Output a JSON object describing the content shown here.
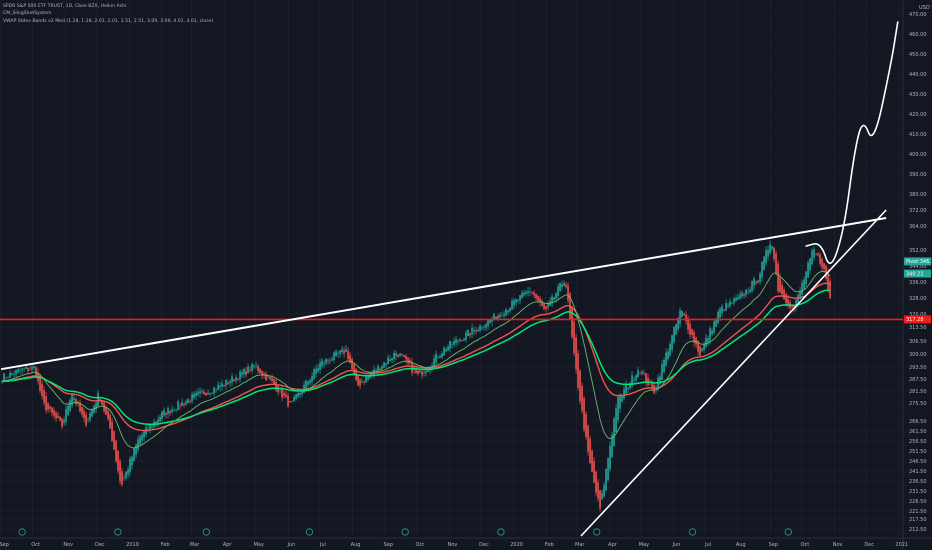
{
  "chart_data": {
    "type": "candlestick",
    "legend": [
      "SPDR S&P 500 ETF TRUST, 1D, Cboe BZX, Heikin Ashi",
      "CM_SlingShotSystem",
      "VWAP Stdev Bands v2 Mod (1.28, 1.28, 2.01, 2.01, 2.51, 2.51, 3.09, 3.09, 4.01, 4.01, close)"
    ],
    "currency_label": "USD",
    "y_axis": {
      "range": [
        209,
        476
      ],
      "ticks": [
        212.5,
        217.5,
        221.5,
        226.5,
        231.5,
        236.5,
        241.5,
        246.5,
        251.5,
        256.5,
        261.5,
        266.5,
        275.5,
        281.5,
        287.5,
        293.5,
        300,
        306.5,
        313.5,
        320,
        328,
        336,
        344,
        352,
        364,
        372,
        380,
        390,
        400,
        410,
        420,
        430,
        440,
        450,
        460,
        470
      ]
    },
    "x_axis": {
      "labels": [
        "Sep",
        "Oct",
        "Nov",
        "Dec",
        "2019",
        "Feb",
        "Mar",
        "Apr",
        "May",
        "Jun",
        "Jul",
        "Aug",
        "Sep",
        "Oct",
        "Nov",
        "Dec",
        "2020",
        "Feb",
        "Mar",
        "Apr",
        "May",
        "Jun",
        "Jul",
        "Aug",
        "Sep",
        "Oct",
        "Nov",
        "Dec",
        "2021"
      ]
    },
    "price_badges": [
      {
        "label": "Pivot",
        "value": "346.30",
        "color": "#26a69a"
      },
      {
        "label": "",
        "value": "340.21",
        "color": "#26a69a"
      },
      {
        "label": "",
        "value": "317.28",
        "color": "#ef1c1c"
      }
    ],
    "levels": {
      "horizontal_support": 317.28
    },
    "close_path": [
      [
        "2018-09-01",
        288
      ],
      [
        "2018-09-20",
        292
      ],
      [
        "2018-10-03",
        293
      ],
      [
        "2018-10-11",
        275
      ],
      [
        "2018-10-29",
        264
      ],
      [
        "2018-11-07",
        281
      ],
      [
        "2018-11-20",
        265
      ],
      [
        "2018-12-03",
        280
      ],
      [
        "2018-12-14",
        262
      ],
      [
        "2018-12-24",
        234
      ],
      [
        "2019-01-10",
        258
      ],
      [
        "2019-02-01",
        270
      ],
      [
        "2019-03-01",
        278
      ],
      [
        "2019-04-01",
        285
      ],
      [
        "2019-04-30",
        294
      ],
      [
        "2019-05-20",
        284
      ],
      [
        "2019-06-03",
        274
      ],
      [
        "2019-07-01",
        295
      ],
      [
        "2019-07-26",
        302
      ],
      [
        "2019-08-05",
        284
      ],
      [
        "2019-09-12",
        301
      ],
      [
        "2019-10-02",
        289
      ],
      [
        "2019-10-28",
        303
      ],
      [
        "2019-12-16",
        319
      ],
      [
        "2020-01-17",
        332
      ],
      [
        "2020-01-31",
        321
      ],
      [
        "2020-02-19",
        338
      ],
      [
        "2020-02-28",
        296
      ],
      [
        "2020-03-12",
        249
      ],
      [
        "2020-03-23",
        222
      ],
      [
        "2020-04-08",
        276
      ],
      [
        "2020-04-29",
        293
      ],
      [
        "2020-05-13",
        281
      ],
      [
        "2020-06-08",
        322
      ],
      [
        "2020-06-26",
        300
      ],
      [
        "2020-07-15",
        322
      ],
      [
        "2020-08-03",
        328
      ],
      [
        "2020-08-20",
        338
      ],
      [
        "2020-09-02",
        358
      ],
      [
        "2020-09-08",
        333
      ],
      [
        "2020-09-23",
        322
      ],
      [
        "2020-10-12",
        352
      ],
      [
        "2020-10-21",
        344
      ],
      [
        "2020-10-28",
        327
      ]
    ],
    "series": [
      {
        "values_from": "slingshot_slow_ema",
        "color": "#ef5350"
      },
      {
        "values_from": "slingshot_fast_ema",
        "color": "#66bb6a"
      },
      {
        "values_from": "vwap",
        "color": "#00e676"
      }
    ],
    "annotations": {
      "upper_trendline": [
        [
          "2018-09-01",
          292.4
        ],
        [
          "2020-12-20",
          368.0
        ]
      ],
      "lower_trendline": [
        [
          "2020-03-05",
          209.0
        ],
        [
          "2020-12-20",
          372.0
        ]
      ],
      "projection_path": [
        [
          "2020-10-05",
          354
        ],
        [
          "2020-10-19",
          356
        ],
        [
          "2020-10-28",
          341
        ],
        [
          "2020-11-10",
          362
        ],
        [
          "2020-11-20",
          402
        ],
        [
          "2020-11-28",
          418
        ],
        [
          "2020-12-08",
          404
        ],
        [
          "2020-12-25",
          446
        ],
        [
          "2020-12-31",
          466
        ]
      ]
    },
    "grid": true,
    "legend_position": "top-left"
  }
}
